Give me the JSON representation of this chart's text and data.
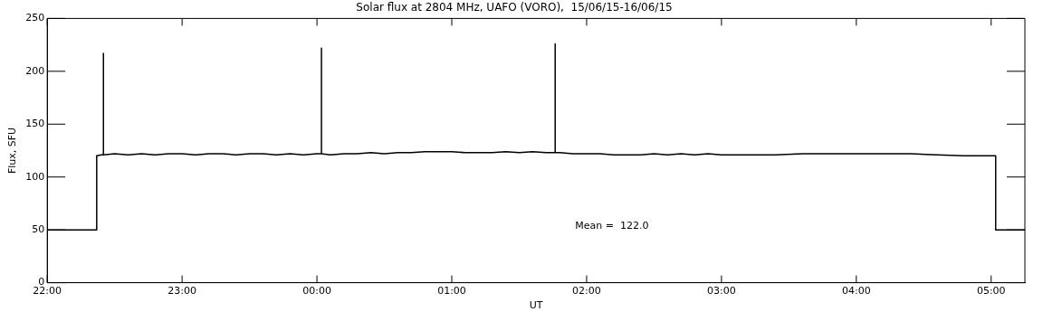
{
  "chart_data": {
    "type": "line",
    "title": "Solar flux at 2804 MHz, UAFO (VORO),  15/06/15-16/06/15",
    "xlabel": "UT",
    "ylabel": "Flux, SFU",
    "annotations": [
      "Mean =  122.0"
    ],
    "x": [
      "--06-15T22:00",
      "--06-15T22:22",
      "--06-15T22:22",
      "--06-15T22:24",
      "--06-15T22:25",
      "--06-15T22:25",
      "--06-15T22:25",
      "--06-15T22:30",
      "--06-15T22:36",
      "--06-15T22:42",
      "--06-15T22:48",
      "--06-15T22:54",
      "--06-15T23:00",
      "--06-15T23:06",
      "--06-15T23:12",
      "--06-15T23:18",
      "--06-15T23:24",
      "--06-15T23:30",
      "--06-15T23:36",
      "--06-15T23:42",
      "--06-15T23:48",
      "--06-15T23:54",
      "--06-16T00:00",
      "--06-16T00:02",
      "--06-16T00:02",
      "--06-16T00:02",
      "--06-16T00:06",
      "--06-16T00:12",
      "--06-16T00:18",
      "--06-16T00:24",
      "--06-16T00:30",
      "--06-16T00:36",
      "--06-16T00:42",
      "--06-16T00:48",
      "--06-16T00:54",
      "--06-16T01:00",
      "--06-16T01:06",
      "--06-16T01:12",
      "--06-16T01:18",
      "--06-16T01:24",
      "--06-16T01:30",
      "--06-16T01:36",
      "--06-16T01:42",
      "--06-16T01:46",
      "--06-16T01:46",
      "--06-16T01:46",
      "--06-16T01:48",
      "--06-16T01:54",
      "--06-16T02:00",
      "--06-16T02:06",
      "--06-16T02:12",
      "--06-16T02:18",
      "--06-16T02:24",
      "--06-16T02:30",
      "--06-16T02:36",
      "--06-16T02:42",
      "--06-16T02:48",
      "--06-16T02:54",
      "--06-16T03:00",
      "--06-16T03:12",
      "--06-16T03:24",
      "--06-16T03:36",
      "--06-16T03:48",
      "--06-16T04:00",
      "--06-16T04:12",
      "--06-16T04:24",
      "--06-16T04:36",
      "--06-16T04:48",
      "--06-16T05:00",
      "--06-16T05:02",
      "--06-16T05:02",
      "--06-16T05:15"
    ],
    "series": [
      {
        "color": "#000000",
        "values": [
          50,
          50,
          120,
          121,
          121,
          217,
          121,
          122,
          121,
          122,
          121,
          122,
          122,
          121,
          122,
          122,
          121,
          122,
          122,
          121,
          122,
          121,
          122,
          122,
          222,
          122,
          121,
          122,
          122,
          123,
          122,
          123,
          123,
          124,
          124,
          124,
          123,
          123,
          123,
          124,
          123,
          124,
          123,
          123,
          226,
          123,
          123,
          122,
          122,
          122,
          121,
          121,
          121,
          122,
          121,
          122,
          121,
          122,
          121,
          121,
          121,
          122,
          122,
          122,
          122,
          122,
          121,
          120,
          120,
          120,
          50,
          50
        ]
      }
    ],
    "xlim": [
      "--06-15T22:00",
      "--06-16T05:15"
    ],
    "xticks": [
      {
        "value": "--06-15T22:00",
        "label": "22:00"
      },
      {
        "value": "--06-15T23:00",
        "label": "23:00"
      },
      {
        "value": "--06-16T00:00",
        "label": "00:00"
      },
      {
        "value": "--06-16T01:00",
        "label": "01:00"
      },
      {
        "value": "--06-16T02:00",
        "label": "02:00"
      },
      {
        "value": "--06-16T03:00",
        "label": "03:00"
      },
      {
        "value": "--06-16T04:00",
        "label": "04:00"
      },
      {
        "value": "--06-16T05:00",
        "label": "05:00"
      }
    ],
    "ylim": [
      0,
      250
    ],
    "yticks": [
      0,
      50,
      100,
      150,
      200,
      250
    ],
    "grid": false,
    "legend": false,
    "marker": "none",
    "line_style": "solid"
  }
}
